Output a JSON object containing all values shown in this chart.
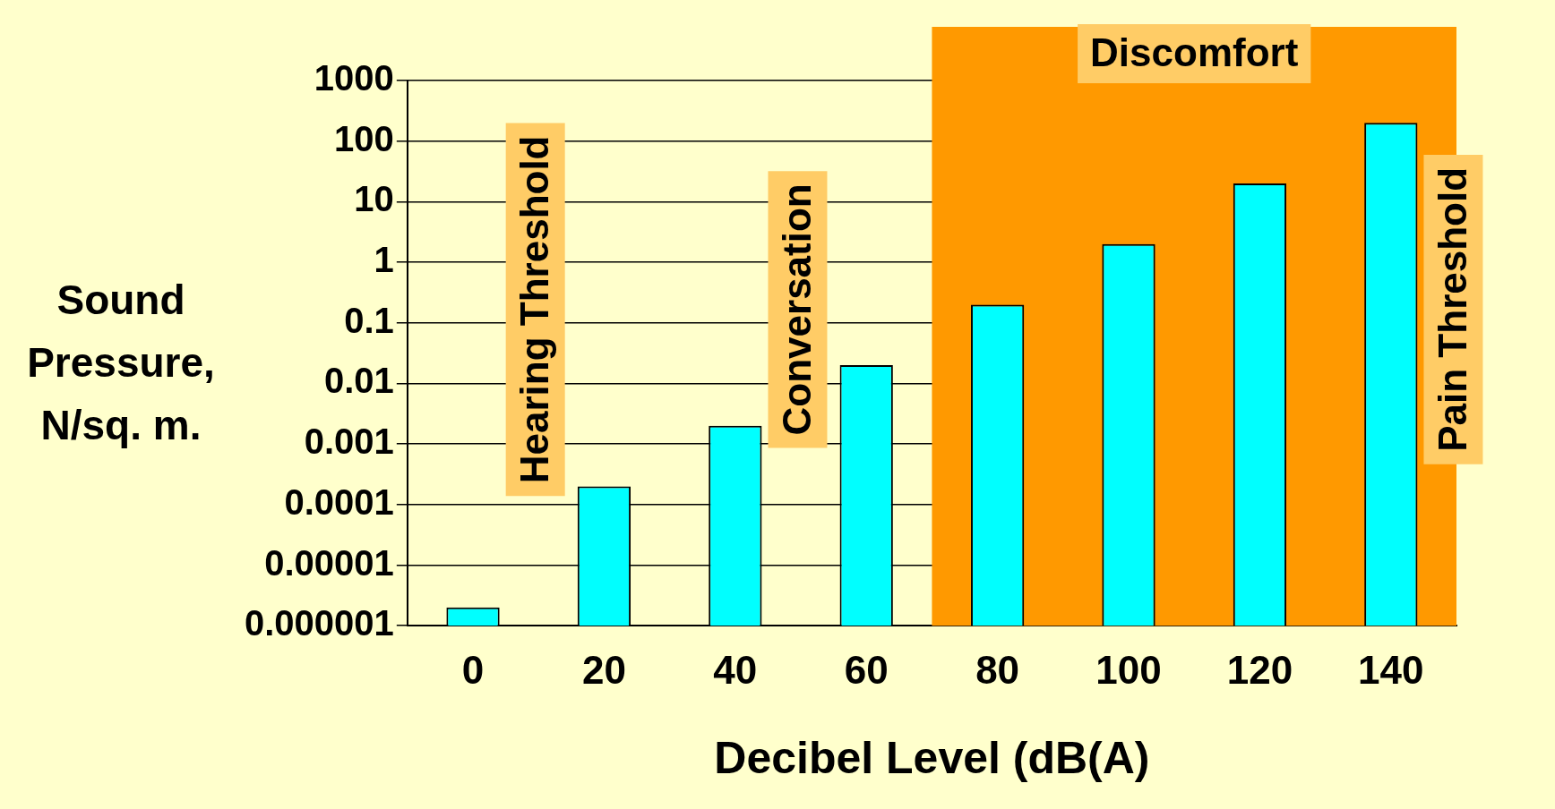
{
  "chart_data": {
    "type": "bar",
    "xlabel": "Decibel Level (dB(A)",
    "ylabel": "Sound Pressure, N/sq. m.",
    "categories": [
      "0",
      "20",
      "40",
      "60",
      "80",
      "100",
      "120",
      "140"
    ],
    "values": [
      2e-06,
      0.0002,
      0.002,
      0.02,
      0.2,
      2,
      20,
      200
    ],
    "color": "#00ffff",
    "log": true,
    "ylim": [
      1e-06,
      1000
    ],
    "yticks": [
      {
        "value": 1e-06,
        "label": "0.000001"
      },
      {
        "value": 1e-05,
        "label": "0.00001"
      },
      0.0001,
      0.001,
      0.01,
      0.1,
      1,
      10,
      100,
      1000
    ],
    "grid": "y",
    "legend": false,
    "bands": [
      {
        "axis": "x",
        "from": "80",
        "to": "140",
        "label": "Discomfort",
        "color": "#ff9900"
      }
    ],
    "annotations": [
      "Hearing Threshold",
      "Conversation",
      "Pain Threshold"
    ]
  }
}
